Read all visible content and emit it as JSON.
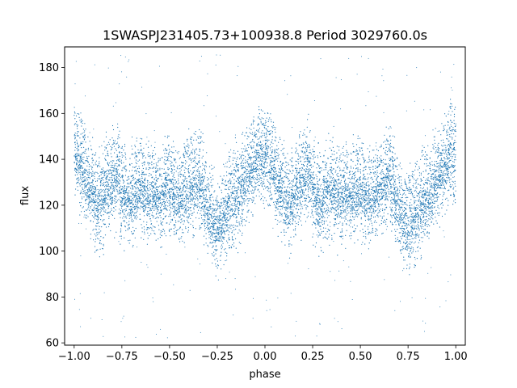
{
  "chart_data": {
    "type": "scatter",
    "title": "1SWASPJ231405.73+100938.8 Period 3029760.0s",
    "xlabel": "phase",
    "ylabel": "flux",
    "xlim": [
      -1.05,
      1.05
    ],
    "ylim": [
      59,
      189
    ],
    "xticks": [
      -1.0,
      -0.75,
      -0.5,
      -0.25,
      0.0,
      0.25,
      0.5,
      0.75,
      1.0
    ],
    "xtick_labels": [
      "−1.00",
      "−0.75",
      "−0.50",
      "−0.25",
      "0.00",
      "0.25",
      "0.50",
      "0.75",
      "1.00"
    ],
    "yticks": [
      60,
      80,
      100,
      120,
      140,
      160,
      180
    ],
    "ytick_labels": [
      "60",
      "80",
      "100",
      "120",
      "140",
      "160",
      "180"
    ],
    "grid": false,
    "point_color": "#1f77b4",
    "series": [
      {
        "description_points": "phase-folded light curve, two cycles from -1 to 1",
        "x": [
          -0.99,
          -0.97,
          -0.95,
          -0.93,
          -0.91,
          -0.89,
          -0.87,
          -0.85,
          -0.83,
          -0.81,
          -0.79,
          -0.77,
          -0.75,
          -0.73,
          -0.71,
          -0.69,
          -0.67,
          -0.65,
          -0.63,
          -0.61,
          -0.59,
          -0.57,
          -0.55,
          -0.53,
          -0.51,
          -0.49,
          -0.47,
          -0.45,
          -0.43,
          -0.41,
          -0.39,
          -0.37,
          -0.35,
          -0.33,
          -0.31,
          -0.29,
          -0.27,
          -0.25,
          -0.23,
          -0.21,
          -0.19,
          -0.17,
          -0.15,
          -0.13,
          -0.11,
          -0.09,
          -0.07,
          -0.05,
          -0.03,
          -0.01,
          0.01,
          0.03,
          0.05,
          0.07,
          0.09,
          0.11,
          0.13,
          0.15,
          0.17,
          0.19,
          0.21,
          0.23,
          0.25,
          0.27,
          0.29,
          0.31,
          0.33,
          0.35,
          0.37,
          0.39,
          0.41,
          0.43,
          0.45,
          0.47,
          0.49,
          0.51,
          0.53,
          0.55,
          0.57,
          0.59,
          0.61,
          0.63,
          0.65,
          0.67,
          0.69,
          0.71,
          0.73,
          0.75,
          0.77,
          0.79,
          0.81,
          0.83,
          0.85,
          0.87,
          0.89,
          0.91,
          0.93,
          0.95,
          0.97,
          0.99
        ],
        "y": [
          142,
          138,
          133,
          128,
          125,
          121,
          119,
          123,
          127,
          129,
          131,
          133,
          126,
          123,
          120,
          124,
          126,
          127,
          125,
          123,
          126,
          124,
          122,
          125,
          127,
          125,
          123,
          121,
          124,
          126,
          128,
          129,
          131,
          127,
          120,
          116,
          112,
          110,
          113,
          116,
          118,
          121,
          123,
          125,
          129,
          133,
          136,
          138,
          141,
          140,
          142,
          138,
          133,
          128,
          125,
          121,
          119,
          123,
          127,
          129,
          131,
          133,
          126,
          123,
          120,
          124,
          126,
          127,
          125,
          123,
          126,
          124,
          122,
          125,
          127,
          125,
          123,
          121,
          124,
          126,
          128,
          129,
          131,
          127,
          120,
          116,
          112,
          110,
          113,
          116,
          118,
          121,
          123,
          125,
          129,
          133,
          136,
          138,
          141,
          140
        ]
      }
    ]
  }
}
